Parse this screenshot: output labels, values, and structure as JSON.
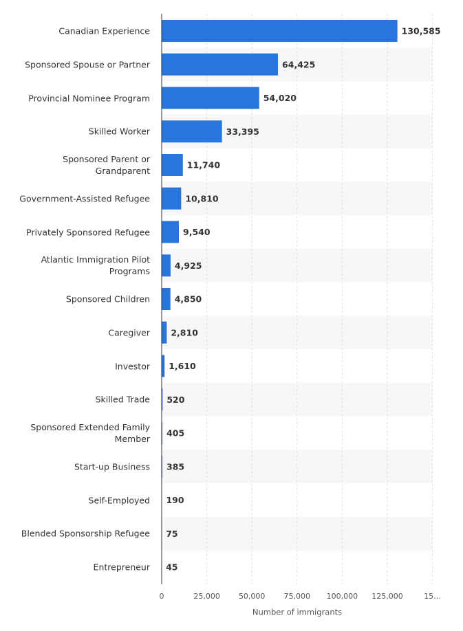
{
  "chart_data": {
    "type": "bar",
    "orientation": "horizontal",
    "categories": [
      "Canadian Experience",
      "Sponsored Spouse or Partner",
      "Provincial Nominee Program",
      "Skilled Worker",
      "Sponsored Parent or Grandparent",
      "Government-Assisted Refugee",
      "Privately Sponsored Refugee",
      "Atlantic Immigration Pilot Programs",
      "Sponsored Children",
      "Caregiver",
      "Investor",
      "Skilled Trade",
      "Sponsored Extended Family Member",
      "Start-up Business",
      "Self-Employed",
      "Blended Sponsorship Refugee",
      "Entrepreneur"
    ],
    "values": [
      130585,
      64425,
      54020,
      33395,
      11740,
      10810,
      9540,
      4925,
      4850,
      2810,
      1610,
      520,
      405,
      385,
      190,
      75,
      45
    ],
    "value_labels": [
      "130,585",
      "64,425",
      "54,020",
      "33,395",
      "11,740",
      "10,810",
      "9,540",
      "4,925",
      "4,850",
      "2,810",
      "1,610",
      "520",
      "405",
      "385",
      "190",
      "75",
      "45"
    ],
    "color": "#2876dd",
    "xlabel": "Number of immigrants",
    "xlim": [
      0,
      150000
    ],
    "xticks": [
      0,
      {
        "value": 25000,
        "label": "25,000"
      },
      {
        "value": 50000,
        "label": "50,000"
      },
      {
        "value": 75000,
        "label": "75,000"
      },
      {
        "value": 100000,
        "label": "100,000"
      },
      {
        "value": 125000,
        "label": "125,000"
      },
      {
        "value": 150000,
        "label": "15…"
      }
    ],
    "grid": true
  }
}
